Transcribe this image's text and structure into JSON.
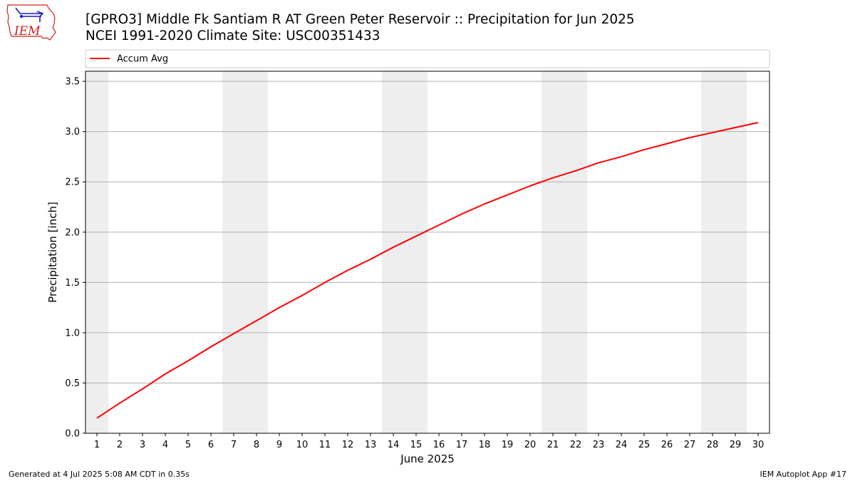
{
  "header": {
    "title_line1": "[GPRO3] Middle Fk Santiam R  AT Green Peter Reservoir :: Precipitation for Jun 2025",
    "title_line2": "NCEI 1991-2020 Climate Site: USC00351433",
    "logo_text": "IEM"
  },
  "footer": {
    "generated": "Generated at 4 Jul 2025 5:08 AM CDT in 0.35s",
    "app": "IEM Autoplot App #17"
  },
  "chart_data": {
    "type": "line",
    "xlabel": "June 2025",
    "ylabel": "Precipitation [inch]",
    "ylim": [
      0,
      3.6
    ],
    "xlim": [
      0.5,
      30.5
    ],
    "yticks": [
      "0.0",
      "0.5",
      "1.0",
      "1.5",
      "2.0",
      "2.5",
      "3.0",
      "3.5"
    ],
    "x": [
      1,
      2,
      3,
      4,
      5,
      6,
      7,
      8,
      9,
      10,
      11,
      12,
      13,
      14,
      15,
      16,
      17,
      18,
      19,
      20,
      21,
      22,
      23,
      24,
      25,
      26,
      27,
      28,
      29,
      30
    ],
    "grid": "horizontal",
    "legend_position": "top",
    "weekend_shading": [
      [
        0.5,
        1.5
      ],
      [
        6.5,
        8.5
      ],
      [
        13.5,
        15.5
      ],
      [
        20.5,
        22.5
      ],
      [
        27.5,
        29.5
      ]
    ],
    "series": [
      {
        "name": "Accum Avg",
        "color": "#ff0000",
        "values": [
          0.15,
          0.3,
          0.44,
          0.59,
          0.72,
          0.86,
          0.99,
          1.12,
          1.25,
          1.37,
          1.5,
          1.62,
          1.73,
          1.85,
          1.96,
          2.07,
          2.18,
          2.28,
          2.37,
          2.46,
          2.54,
          2.61,
          2.69,
          2.75,
          2.82,
          2.88,
          2.94,
          2.99,
          3.04,
          3.09
        ]
      }
    ]
  },
  "colors": {
    "shade": "#eeeeee",
    "grid": "#b0b0b0",
    "line": "#ff0000",
    "logo_red": "#cc2222",
    "logo_blue": "#1a1acc"
  }
}
